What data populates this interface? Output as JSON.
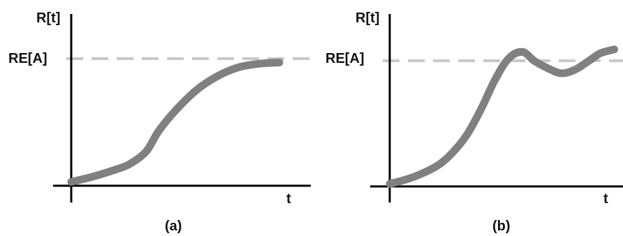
{
  "chart_data": [
    {
      "type": "line",
      "panel_label": "(a)",
      "ylabel": "R[t]",
      "xlabel": "t",
      "reference_line": {
        "label": "RE[A]",
        "value": 1.0,
        "style": "dashed",
        "color": "#c8c8c8"
      },
      "grid": false,
      "legend": "none",
      "xlim": [
        0,
        10
      ],
      "ylim": [
        0,
        1.15
      ],
      "series": [
        {
          "color": "#808080",
          "x": [
            0,
            1,
            2,
            2.8,
            3.6,
            4.2,
            5.0,
            6.0,
            7.0,
            8.0,
            9.0,
            10.0
          ],
          "y": [
            0.03,
            0.07,
            0.12,
            0.17,
            0.27,
            0.43,
            0.59,
            0.75,
            0.86,
            0.93,
            0.96,
            0.97
          ]
        }
      ]
    },
    {
      "type": "line",
      "panel_label": "(b)",
      "ylabel": "R[t]",
      "xlabel": "t",
      "reference_line": {
        "label": "RE[A]",
        "value": 1.0,
        "style": "dashed",
        "color": "#c8c8c8"
      },
      "grid": false,
      "legend": "none",
      "xlim": [
        0,
        10
      ],
      "ylim": [
        0,
        1.15
      ],
      "series": [
        {
          "color": "#808080",
          "x": [
            0,
            0.8,
            1.5,
            2.2,
            2.8,
            3.4,
            4.0,
            4.6,
            5.2,
            5.8,
            6.3,
            6.9,
            7.5,
            8.1,
            8.7,
            9.2,
            9.8
          ],
          "y": [
            0.02,
            0.06,
            0.11,
            0.18,
            0.28,
            0.42,
            0.62,
            0.85,
            1.02,
            1.07,
            1.0,
            0.94,
            0.9,
            0.93,
            1.0,
            1.06,
            1.09
          ]
        }
      ]
    }
  ],
  "colors": {
    "axis": "#000000",
    "curve": "#808080",
    "reference": "#c8c8c8",
    "text": "#111111"
  }
}
